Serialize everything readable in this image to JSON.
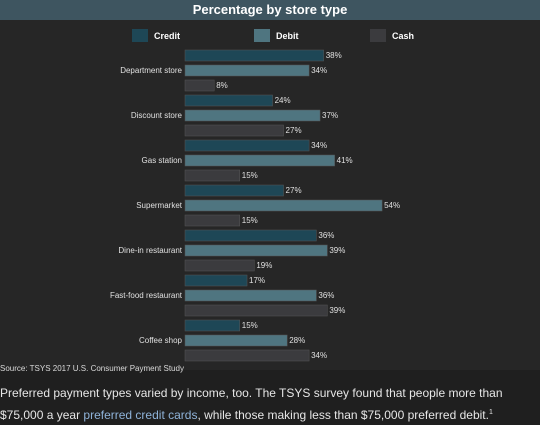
{
  "colors": {
    "credit": "#1e4756",
    "debit": "#4f7580",
    "cash": "#3b3b3e",
    "background": "#262626",
    "title_bar": "#3e5560"
  },
  "chart_data": {
    "type": "bar",
    "orientation": "horizontal",
    "title": "Percentage by store type",
    "categories": [
      "Department store",
      "Discount store",
      "Gas station",
      "Supermarket",
      "Dine-in restaurant",
      "Fast-food restaurant",
      "Coffee shop"
    ],
    "series": [
      {
        "name": "Credit",
        "values": [
          38,
          24,
          34,
          27,
          36,
          17,
          15
        ]
      },
      {
        "name": "Debit",
        "values": [
          34,
          37,
          41,
          54,
          39,
          36,
          28
        ]
      },
      {
        "name": "Cash",
        "values": [
          8,
          27,
          15,
          15,
          19,
          39,
          34
        ]
      }
    ],
    "value_suffix": "%",
    "legend_position": "top",
    "grid": false
  },
  "source": "Source: TSYS 2017 U.S. Consumer Payment Study",
  "caption": {
    "before": "Preferred payment types varied by income, too. The TSYS survey found that people more than $75,000 a year ",
    "link": "preferred credit cards",
    "after": ", while those making less than $75,000 preferred debit.",
    "footnote": "1"
  }
}
